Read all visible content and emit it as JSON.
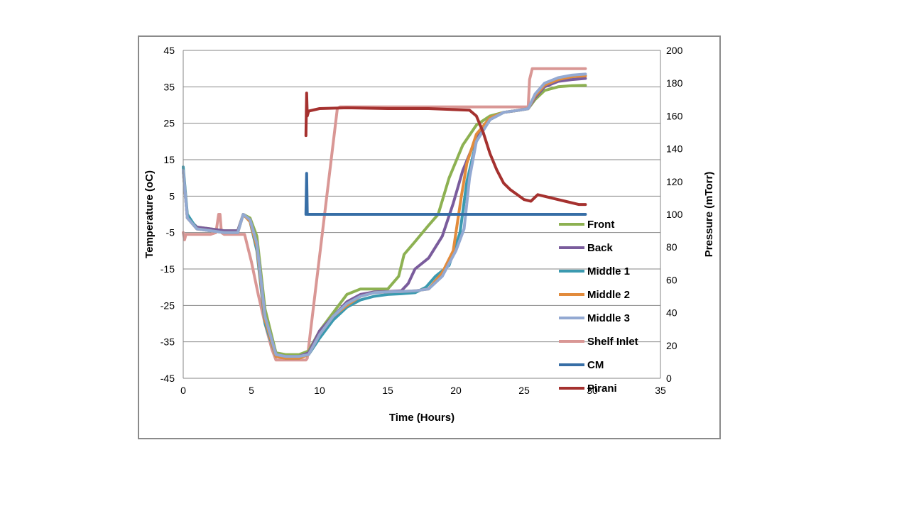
{
  "chart_data": {
    "type": "line",
    "xlabel": "Time (Hours)",
    "ylabel_left": "Temperature (oC)",
    "ylabel_right": "Pressure (mTorr)",
    "xlim": [
      0,
      35
    ],
    "ylim_left": [
      -45,
      45
    ],
    "ylim_right": [
      0,
      200
    ],
    "x_ticks": [
      "0",
      "5",
      "10",
      "15",
      "20",
      "25",
      "30",
      "35"
    ],
    "y_left_ticks": [
      "-45",
      "-35",
      "-25",
      "-15",
      "-5",
      "5",
      "15",
      "25",
      "35",
      "45"
    ],
    "y_right_ticks": [
      "0",
      "20",
      "40",
      "60",
      "80",
      "100",
      "120",
      "140",
      "160",
      "180",
      "200"
    ],
    "grid": true,
    "legend_position": "right-inside",
    "series": [
      {
        "name": "Front",
        "color": "#8DB152",
        "axis": "left",
        "x": [
          0,
          0.3,
          1,
          2,
          3,
          4,
          4.4,
          4.9,
          5.4,
          6,
          6.8,
          7.5,
          8.5,
          9.2,
          10,
          11,
          12,
          13,
          14,
          15,
          15.8,
          16.2,
          17,
          18,
          18.7,
          19.5,
          20.5,
          21.5,
          22.5,
          23.5,
          24.5,
          25.3,
          25.8,
          26.5,
          27.5,
          28.5,
          29.5
        ],
        "y": [
          12,
          -1,
          -3.5,
          -4,
          -4.5,
          -4.5,
          0,
          -1,
          -6,
          -26,
          -38,
          -38.5,
          -38.5,
          -37.5,
          -32,
          -27,
          -22,
          -20.5,
          -20.5,
          -20.5,
          -17,
          -11,
          -7.5,
          -3,
          0,
          10,
          19,
          24.5,
          27,
          28,
          28.5,
          29,
          31.5,
          34,
          35,
          35.3,
          35.4
        ]
      },
      {
        "name": "Back",
        "color": "#7A5C9C",
        "axis": "left",
        "x": [
          0,
          0.3,
          1,
          2,
          3,
          4,
          4.4,
          4.9,
          5.4,
          6,
          6.8,
          7.5,
          8.5,
          9.2,
          10,
          11,
          12,
          13,
          14,
          15,
          16,
          16.5,
          17,
          18,
          19,
          19.8,
          20.5,
          21.5,
          22.5,
          23.5,
          24.5,
          25.3,
          25.8,
          26.5,
          27.5,
          28.5,
          29.5
        ],
        "y": [
          12,
          -1,
          -3.5,
          -4,
          -4.5,
          -4.5,
          0,
          -1.5,
          -8,
          -28,
          -38.5,
          -39,
          -39,
          -38,
          -32,
          -28,
          -24,
          -22,
          -21.3,
          -21.2,
          -21,
          -19,
          -15,
          -12,
          -6,
          3,
          12,
          21,
          26,
          28,
          28.5,
          29,
          32,
          35,
          36.5,
          37,
          37.3
        ]
      },
      {
        "name": "Middle 1",
        "color": "#3B9AB0",
        "axis": "left",
        "x": [
          0,
          0.3,
          1,
          2,
          3,
          4,
          4.4,
          4.9,
          5.4,
          6,
          6.8,
          7.5,
          8.5,
          9.2,
          10,
          11,
          12,
          13,
          14,
          15,
          16,
          17,
          17.8,
          18.5,
          19.5,
          20.3,
          20.8,
          21.5,
          22.5,
          23.5,
          24.5,
          25.3,
          25.8,
          26.5,
          27.5,
          28.5,
          29.5
        ],
        "y": [
          13,
          0,
          -4,
          -4.5,
          -5,
          -5,
          0,
          -2,
          -10,
          -30,
          -39,
          -39.5,
          -39.5,
          -38.5,
          -34,
          -29,
          -25.5,
          -23.5,
          -22.5,
          -22,
          -21.8,
          -21.5,
          -20,
          -17,
          -14,
          -5,
          9,
          20,
          26,
          28,
          28.5,
          29,
          32.5,
          35.5,
          37,
          37.8,
          38
        ]
      },
      {
        "name": "Middle 2",
        "color": "#E28B3C",
        "axis": "left",
        "x": [
          0,
          0.3,
          1,
          2,
          3,
          4,
          4.4,
          4.9,
          5.4,
          6,
          6.8,
          7.5,
          8.5,
          9.2,
          10,
          11,
          12,
          13,
          14,
          15,
          16,
          17,
          18,
          19,
          19.8,
          20.4,
          20.8,
          21.5,
          22.5,
          23.5,
          24.5,
          25.3,
          25.8,
          26.5,
          27.5,
          28.5,
          29.5
        ],
        "y": [
          12,
          -1,
          -4,
          -4.5,
          -5,
          -5,
          0,
          -2,
          -9,
          -29,
          -39,
          -39.5,
          -39.5,
          -38.5,
          -33,
          -28,
          -25,
          -22.5,
          -21.5,
          -21.3,
          -21.2,
          -21,
          -20.5,
          -16,
          -10,
          5,
          14,
          22,
          26.5,
          28,
          28.5,
          29,
          32.5,
          35.5,
          37,
          37.8,
          38
        ]
      },
      {
        "name": "Middle 3",
        "color": "#93A9D2",
        "axis": "left",
        "x": [
          0,
          0.3,
          1,
          2,
          3,
          4,
          4.4,
          4.9,
          5.4,
          6,
          6.8,
          7.5,
          8.5,
          9.2,
          10,
          11,
          12,
          13,
          14,
          15,
          16,
          17,
          18,
          19,
          20,
          20.6,
          21,
          21.5,
          22.5,
          23.5,
          24.5,
          25.3,
          25.8,
          26.5,
          27.5,
          28.5,
          29.5
        ],
        "y": [
          12,
          -1,
          -4,
          -4.5,
          -5,
          -5,
          0,
          -1.5,
          -8,
          -28,
          -38.5,
          -39,
          -39,
          -38.5,
          -33,
          -28,
          -24.5,
          -22.5,
          -21.5,
          -21.3,
          -21.2,
          -21,
          -20.5,
          -17,
          -10,
          -4,
          10,
          20,
          26,
          28,
          28.5,
          29,
          33,
          36,
          37.5,
          38.2,
          38.5
        ]
      },
      {
        "name": "Shelf Inlet",
        "color": "#D99795",
        "axis": "left",
        "x": [
          0,
          0.1,
          0.2,
          2,
          2.4,
          2.6,
          2.7,
          2.8,
          3,
          4.5,
          5,
          5.5,
          6,
          6.5,
          6.8,
          7.5,
          8.5,
          9,
          9.1,
          11.3,
          11.5,
          15,
          20,
          25.3,
          25.4,
          25.6,
          26,
          28,
          29.5
        ],
        "y": [
          -5,
          -7,
          -5.5,
          -5.5,
          -5,
          0,
          0,
          -5,
          -5.5,
          -5.5,
          -13,
          -22,
          -30,
          -37,
          -40,
          -40,
          -40,
          -40,
          -39.5,
          29,
          29.5,
          29.5,
          29.5,
          29.5,
          37,
          40,
          40,
          40,
          40
        ]
      },
      {
        "name": "CM",
        "color": "#376EA6",
        "axis": "right",
        "x": [
          9,
          9.05,
          9.1,
          9.2,
          12,
          15,
          18,
          20,
          22,
          25,
          27,
          29.5
        ],
        "y": [
          100,
          125,
          100,
          100,
          100,
          100,
          100,
          100,
          100,
          100,
          100,
          100
        ]
      },
      {
        "name": "Pirani",
        "color": "#A5312F",
        "axis": "right",
        "x": [
          9,
          9.05,
          9.1,
          9.2,
          10,
          12,
          15,
          18,
          21,
          21.5,
          22,
          22.5,
          23,
          23.5,
          24,
          24.5,
          25,
          25.5,
          26,
          27,
          28,
          29,
          29.5
        ],
        "y": [
          148,
          174,
          160,
          163,
          164.5,
          165,
          164.5,
          164.5,
          163.5,
          160,
          150,
          137,
          127,
          119,
          115,
          112,
          109,
          108,
          112,
          110,
          108,
          106,
          106
        ]
      }
    ]
  }
}
